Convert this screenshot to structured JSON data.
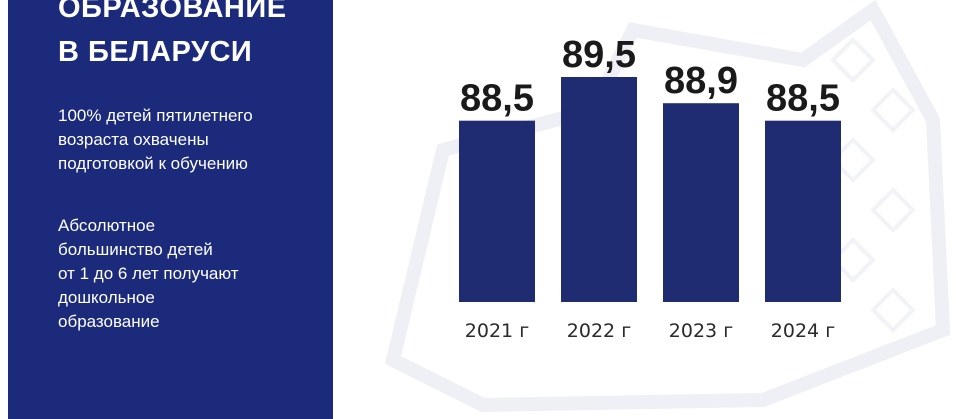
{
  "panel": {
    "title_lines": [
      "ОБРАЗОВАНИЕ",
      "В БЕЛАРУСИ"
    ],
    "paragraph1_lines": [
      "100% детей пятилетнего",
      "возраста охвачены",
      "подготовкой к обучению"
    ],
    "paragraph2_lines": [
      "Абсолютное",
      "большинство детей",
      "от 1 до 6 лет получают",
      "дошкольное",
      "образование"
    ]
  },
  "colors": {
    "panel_bg": "#1b2a7a",
    "bar": "#1f2c72",
    "value_text": "#1a1a1a"
  },
  "chart_data": {
    "type": "bar",
    "categories": [
      "2021 г",
      "2022 г",
      "2023 г",
      "2024 г"
    ],
    "values": [
      88.5,
      89.5,
      88.9,
      88.5
    ],
    "value_labels": [
      "88,5",
      "89,5",
      "88,9",
      "88,5"
    ],
    "title": "",
    "xlabel": "",
    "ylabel": "",
    "ylim": [
      84.35,
      89.5
    ],
    "grid": false,
    "legend": "none"
  }
}
